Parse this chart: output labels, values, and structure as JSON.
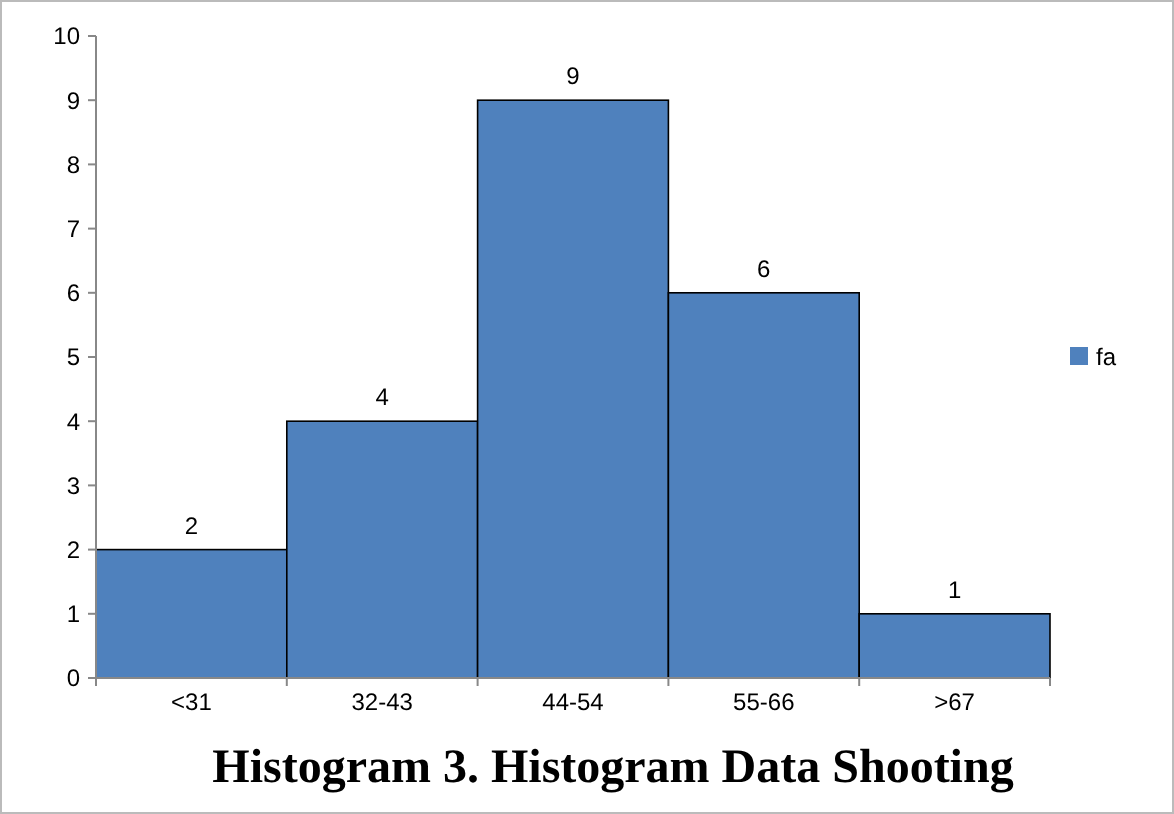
{
  "chart_data": {
    "type": "bar",
    "title": "Histogram 3. Histogram Data Shooting",
    "categories": [
      "<31",
      "32-43",
      "44-54",
      "55-66",
      ">67"
    ],
    "series": [
      {
        "name": "fa",
        "color": "#4f81bd",
        "values": [
          2,
          4,
          9,
          6,
          1
        ]
      }
    ],
    "ylim": [
      0,
      10
    ],
    "yticks": [
      0,
      1,
      2,
      3,
      4,
      5,
      6,
      7,
      8,
      9,
      10
    ],
    "data_labels": true,
    "legend": "right",
    "grid": false
  }
}
